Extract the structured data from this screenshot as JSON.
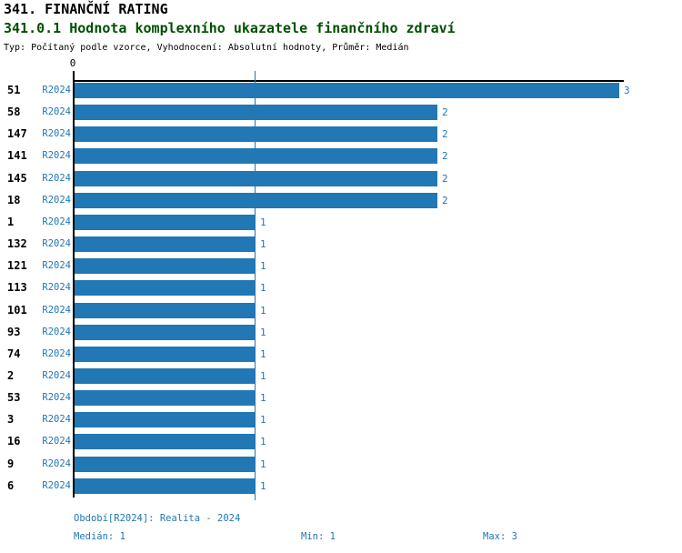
{
  "title": "341. FINANČNÍ RATING",
  "subtitle": "341.0.1 Hodnota komplexního ukazatele finančního zdraví",
  "meta": "Typ: Počítaný podle vzorce, Vyhodnocení: Absolutní hodnoty, Průměr: Medián",
  "colors": {
    "bar_blue": "#2277b5",
    "subtitle_green": "#004f00",
    "axis_black": "#000000"
  },
  "chart_data": {
    "type": "bar",
    "orientation": "horizontal",
    "title": "341.0.1 Hodnota komplexního ukazatele finančního zdraví",
    "x_axis": {
      "origin_label": "0",
      "min": 0,
      "max": 3,
      "gridlines": false
    },
    "series_label": "R2024",
    "median_value": 1,
    "value_labels_shown": true,
    "rows": [
      {
        "id": "51",
        "period": "R2024",
        "value": 3
      },
      {
        "id": "58",
        "period": "R2024",
        "value": 2
      },
      {
        "id": "147",
        "period": "R2024",
        "value": 2
      },
      {
        "id": "141",
        "period": "R2024",
        "value": 2
      },
      {
        "id": "145",
        "period": "R2024",
        "value": 2
      },
      {
        "id": "18",
        "period": "R2024",
        "value": 2
      },
      {
        "id": "1",
        "period": "R2024",
        "value": 1
      },
      {
        "id": "132",
        "period": "R2024",
        "value": 1
      },
      {
        "id": "121",
        "period": "R2024",
        "value": 1
      },
      {
        "id": "113",
        "period": "R2024",
        "value": 1
      },
      {
        "id": "101",
        "period": "R2024",
        "value": 1
      },
      {
        "id": "93",
        "period": "R2024",
        "value": 1
      },
      {
        "id": "74",
        "period": "R2024",
        "value": 1
      },
      {
        "id": "2",
        "period": "R2024",
        "value": 1
      },
      {
        "id": "53",
        "period": "R2024",
        "value": 1
      },
      {
        "id": "3",
        "period": "R2024",
        "value": 1
      },
      {
        "id": "16",
        "period": "R2024",
        "value": 1
      },
      {
        "id": "9",
        "period": "R2024",
        "value": 1
      },
      {
        "id": "6",
        "period": "R2024",
        "value": 1
      }
    ]
  },
  "footer": {
    "period_line": "Období[R2024]: Realita - 2024",
    "median_label": "Medián: 1",
    "min_label": "Min: 1",
    "max_label": "Max: 3"
  }
}
